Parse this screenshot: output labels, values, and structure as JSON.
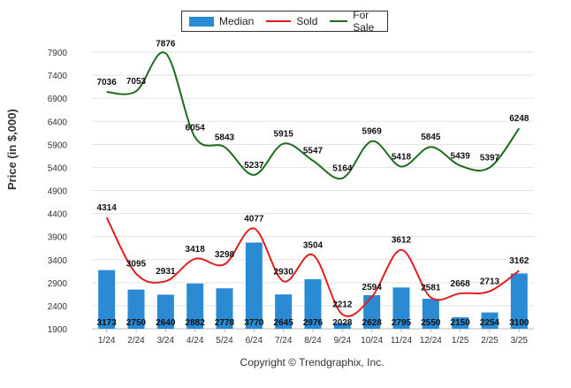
{
  "chart_data": {
    "type": "bar+line",
    "categories": [
      "1/24",
      "2/24",
      "3/24",
      "4/24",
      "5/24",
      "6/24",
      "7/24",
      "8/24",
      "9/24",
      "10/24",
      "11/24",
      "12/24",
      "1/25",
      "2/25",
      "3/25"
    ],
    "series": [
      {
        "name": "Median",
        "kind": "bar",
        "color": "#2a8ad4",
        "values": [
          3173,
          2750,
          2640,
          2882,
          2778,
          3770,
          2645,
          2976,
          2028,
          2628,
          2795,
          2550,
          2150,
          2254,
          3100
        ]
      },
      {
        "name": "Sold",
        "kind": "line",
        "color": "#e02020",
        "values": [
          4314,
          3095,
          2931,
          3418,
          3298,
          4077,
          2930,
          3504,
          2212,
          2594,
          3612,
          2581,
          2668,
          2713,
          3162
        ]
      },
      {
        "name": "For Sale",
        "kind": "line",
        "color": "#1e6b1e",
        "values": [
          7036,
          7053,
          7876,
          6054,
          5843,
          5237,
          5915,
          5547,
          5164,
          5969,
          5418,
          5845,
          5439,
          5397,
          6248
        ]
      }
    ],
    "ylabel": "Price (in $,000)",
    "ylim": [
      1900,
      7900
    ],
    "yticks": [
      1900,
      2400,
      2900,
      3400,
      3900,
      4400,
      4900,
      5400,
      5900,
      6400,
      6900,
      7400,
      7900
    ],
    "grid": true,
    "legend_position": "top-center"
  },
  "footer": {
    "copyright": "Copyright © Trendgraphix, Inc."
  }
}
